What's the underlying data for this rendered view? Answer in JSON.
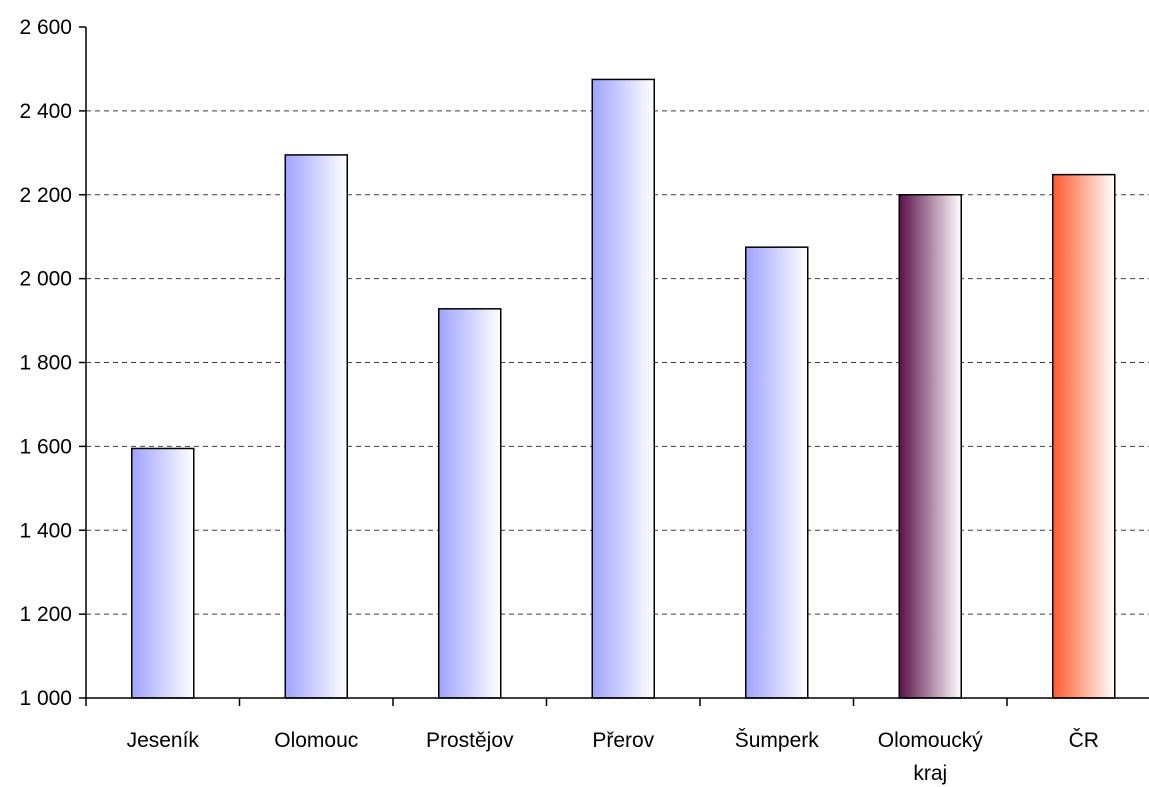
{
  "chart_data": {
    "type": "bar",
    "title": "",
    "xlabel": "",
    "ylabel": "",
    "categories": [
      "Jeseník",
      "Olomouc",
      "Prostějov",
      "Přerov",
      "Šumperk",
      "Olomoucký kraj",
      "ČR"
    ],
    "category_lines": [
      [
        "Jeseník"
      ],
      [
        "Olomouc"
      ],
      [
        "Prostějov"
      ],
      [
        "Přerov"
      ],
      [
        "Šumperk"
      ],
      [
        "Olomoucký",
        "kraj"
      ],
      [
        "ČR"
      ]
    ],
    "values": [
      1595,
      2295,
      1928,
      2475,
      2075,
      2200,
      2248
    ],
    "ylim": [
      1000,
      2600
    ],
    "y_ticks": [
      1000,
      1200,
      1400,
      1600,
      1800,
      2000,
      2200,
      2400,
      2600
    ],
    "y_tick_labels": [
      "1 000",
      "1 200",
      "1 400",
      "1 600",
      "1 800",
      "2 000",
      "2 200",
      "2 400",
      "2 600"
    ],
    "grid": true,
    "legend": "none",
    "bar_gradients": [
      [
        "#9fa3ff",
        "#ffffff"
      ],
      [
        "#9fa3ff",
        "#ffffff"
      ],
      [
        "#9fa3ff",
        "#ffffff"
      ],
      [
        "#9fa3ff",
        "#ffffff"
      ],
      [
        "#9fa3ff",
        "#ffffff"
      ],
      [
        "#5a0f4a",
        "#ffffff"
      ],
      [
        "#ff5a2a",
        "#ffffff"
      ]
    ]
  }
}
